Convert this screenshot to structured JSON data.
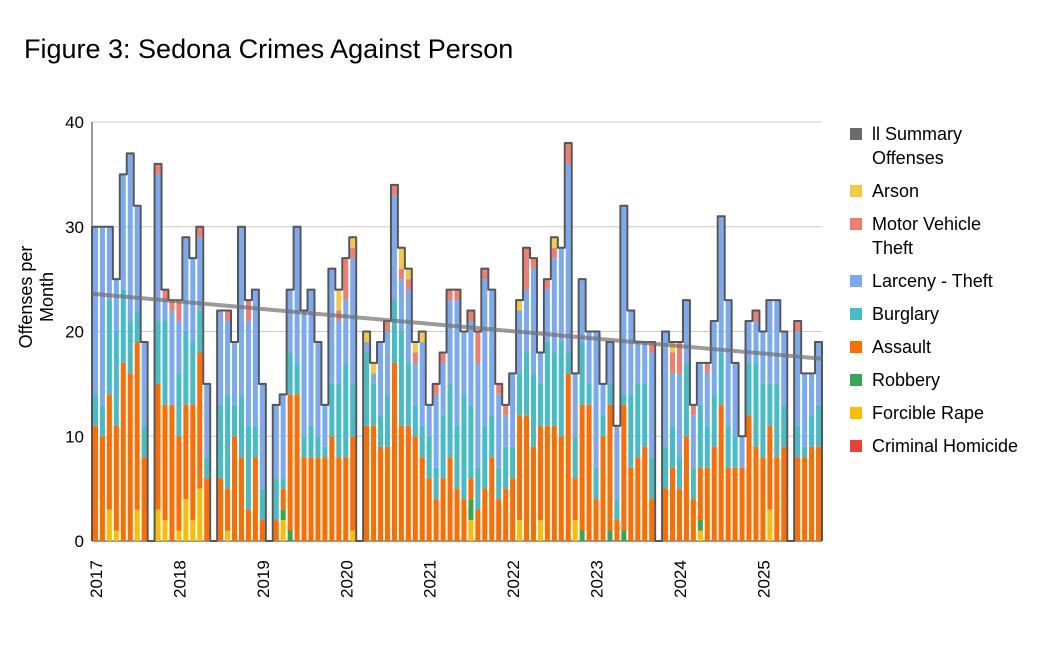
{
  "chart_data": {
    "type": "bar",
    "title": "Figure 3: Sedona Crimes Against Person",
    "ylabel": "Offenses per Month",
    "xlabel": "",
    "ylim": [
      0,
      40
    ],
    "yticks": [
      0,
      10,
      20,
      30,
      40
    ],
    "year_labels": [
      "2017",
      "2018",
      "2019",
      "2020",
      "2021",
      "2022",
      "2023",
      "2024",
      "2025"
    ],
    "months_per_year": 12,
    "legend": [
      {
        "name": "ll Summary Offenses",
        "lines": [
          "ll Summary",
          "Offenses"
        ],
        "color": "#6b6b6b"
      },
      {
        "name": "Arson",
        "lines": [
          "Arson"
        ],
        "color": "#f6c945"
      },
      {
        "name": "Motor Vehicle Theft",
        "lines": [
          "Motor Vehicle",
          "Theft"
        ],
        "color": "#f07e6e"
      },
      {
        "name": "Larceny - Theft",
        "lines": [
          "Larceny - Theft"
        ],
        "color": "#7baaf0"
      },
      {
        "name": "Burglary",
        "lines": [
          "Burglary"
        ],
        "color": "#46bdc6"
      },
      {
        "name": "Assault",
        "lines": [
          "Assault"
        ],
        "color": "#ff6d01"
      },
      {
        "name": "Robbery",
        "lines": [
          "Robbery"
        ],
        "color": "#34a853"
      },
      {
        "name": "Forcible Rape",
        "lines": [
          "Forcible Rape"
        ],
        "color": "#fbbc04"
      },
      {
        "name": "Criminal Homicide",
        "lines": [
          "Criminal Homicide"
        ],
        "color": "#ea4335"
      }
    ],
    "stack_order": [
      "Criminal Homicide",
      "Forcible Rape",
      "Robbery",
      "Assault",
      "Burglary",
      "Larceny - Theft",
      "Motor Vehicle Theft",
      "Arson"
    ],
    "trendline": {
      "start": 23.6,
      "end": 17.4
    },
    "months": [
      [
        0,
        0,
        0,
        11,
        3,
        16,
        0,
        0
      ],
      [
        0,
        0,
        0,
        10,
        3,
        17,
        0,
        0
      ],
      [
        0,
        3,
        0,
        11,
        9,
        7,
        0,
        0
      ],
      [
        0,
        1,
        0,
        10,
        9,
        5,
        0,
        0
      ],
      [
        0,
        0,
        0,
        17,
        7,
        11,
        0,
        0
      ],
      [
        0,
        0,
        0,
        16,
        5,
        16,
        0,
        0
      ],
      [
        0,
        3,
        0,
        16,
        3,
        10,
        0,
        0
      ],
      [
        0,
        0,
        0,
        8,
        3,
        8,
        0,
        0
      ],
      [
        0,
        0,
        0,
        0,
        0,
        0,
        0,
        0
      ],
      [
        0,
        3,
        0,
        12,
        6,
        14,
        1,
        0
      ],
      [
        0,
        2,
        0,
        11,
        8,
        2,
        1,
        0
      ],
      [
        0,
        0,
        0,
        13,
        0,
        9,
        1,
        0
      ],
      [
        0,
        1,
        0,
        9,
        6,
        5,
        2,
        0
      ],
      [
        0,
        4,
        0,
        9,
        7,
        9,
        0,
        0
      ],
      [
        0,
        2,
        0,
        11,
        6,
        8,
        0,
        0
      ],
      [
        0,
        5,
        0,
        13,
        4,
        7,
        1,
        0
      ],
      [
        0,
        0,
        0,
        6,
        2,
        7,
        0,
        0
      ],
      [
        0,
        0,
        0,
        0,
        0,
        0,
        0,
        0
      ],
      [
        0,
        0,
        0,
        6,
        7,
        9,
        0,
        0
      ],
      [
        0,
        1,
        0,
        4,
        9,
        7,
        1,
        0
      ],
      [
        0,
        0,
        0,
        10,
        3,
        6,
        0,
        0
      ],
      [
        0,
        0,
        0,
        8,
        6,
        16,
        0,
        0
      ],
      [
        0,
        0,
        0,
        3,
        8,
        10,
        2,
        0
      ],
      [
        0,
        0,
        0,
        8,
        3,
        13,
        0,
        0
      ],
      [
        0,
        0,
        0,
        2,
        3,
        10,
        0,
        0
      ],
      [
        0,
        0,
        0,
        0,
        0,
        0,
        0,
        0
      ],
      [
        0,
        0,
        0,
        2,
        4,
        7,
        0,
        0
      ],
      [
        0,
        2,
        1,
        2,
        1,
        8,
        0,
        0
      ],
      [
        0,
        0,
        1,
        13,
        4,
        6,
        0,
        0
      ],
      [
        0,
        0,
        0,
        14,
        3,
        13,
        0,
        0
      ],
      [
        0,
        0,
        0,
        8,
        2,
        12,
        0,
        0
      ],
      [
        0,
        0,
        0,
        8,
        3,
        13,
        0,
        0
      ],
      [
        0,
        0,
        0,
        8,
        2,
        9,
        0,
        0
      ],
      [
        0,
        0,
        0,
        8,
        1,
        4,
        0,
        0
      ],
      [
        0,
        0,
        0,
        10,
        5,
        11,
        0,
        0
      ],
      [
        0,
        0,
        0,
        8,
        7,
        6,
        1,
        2
      ],
      [
        0,
        0,
        0,
        8,
        9,
        6,
        4,
        0
      ],
      [
        0,
        1,
        0,
        9,
        5,
        12,
        1,
        1
      ],
      [
        0,
        0,
        0,
        0,
        0,
        0,
        0,
        0
      ],
      [
        0,
        0,
        0,
        11,
        7,
        1,
        0,
        1
      ],
      [
        0,
        0,
        0,
        11,
        4,
        1,
        0,
        1
      ],
      [
        0,
        0,
        0,
        9,
        3,
        7,
        0,
        0
      ],
      [
        0,
        0,
        0,
        9,
        5,
        6,
        1,
        0
      ],
      [
        0,
        0,
        0,
        17,
        6,
        10,
        1,
        0
      ],
      [
        0,
        0,
        0,
        11,
        9,
        5,
        1,
        2
      ],
      [
        0,
        0,
        0,
        11,
        6,
        7,
        1,
        1
      ],
      [
        0,
        0,
        0,
        10,
        3,
        4,
        1,
        1
      ],
      [
        0,
        0,
        0,
        8,
        3,
        8,
        0,
        1
      ],
      [
        0,
        0,
        0,
        6,
        4,
        3,
        0,
        0
      ],
      [
        0,
        0,
        0,
        4,
        3,
        7,
        1,
        0
      ],
      [
        0,
        0,
        0,
        6,
        6,
        5,
        1,
        0
      ],
      [
        0,
        0,
        0,
        8,
        7,
        8,
        1,
        0
      ],
      [
        0,
        0,
        0,
        5,
        6,
        12,
        1,
        0
      ],
      [
        0,
        0,
        0,
        4,
        10,
        6,
        0,
        0
      ],
      [
        0,
        2,
        2,
        2,
        7,
        8,
        1,
        0
      ],
      [
        0,
        0,
        0,
        3,
        4,
        10,
        3,
        0
      ],
      [
        0,
        0,
        0,
        5,
        6,
        14,
        1,
        0
      ],
      [
        0,
        0,
        0,
        8,
        4,
        12,
        0,
        0
      ],
      [
        0,
        0,
        0,
        4,
        3,
        7,
        1,
        0
      ],
      [
        0,
        0,
        0,
        5,
        4,
        3,
        1,
        0
      ],
      [
        0,
        0,
        0,
        6,
        3,
        7,
        0,
        0
      ],
      [
        0,
        2,
        0,
        10,
        4,
        6,
        0,
        1
      ],
      [
        0,
        0,
        0,
        12,
        6,
        6,
        4,
        0
      ],
      [
        0,
        0,
        0,
        9,
        7,
        10,
        1,
        0
      ],
      [
        0,
        2,
        0,
        9,
        4,
        3,
        0,
        0
      ],
      [
        0,
        0,
        0,
        11,
        8,
        5,
        1,
        0
      ],
      [
        0,
        0,
        0,
        11,
        7,
        9,
        1,
        1
      ],
      [
        0,
        0,
        0,
        10,
        9,
        9,
        0,
        0
      ],
      [
        0,
        0,
        0,
        16,
        2,
        18,
        2,
        0
      ],
      [
        0,
        2,
        0,
        4,
        4,
        6,
        0,
        0
      ],
      [
        0,
        0,
        1,
        12,
        6,
        6,
        0,
        0
      ],
      [
        0,
        0,
        0,
        13,
        2,
        5,
        0,
        0
      ],
      [
        0,
        0,
        0,
        4,
        3,
        13,
        0,
        0
      ],
      [
        0,
        0,
        0,
        10,
        2,
        3,
        0,
        0
      ],
      [
        0,
        0,
        1,
        12,
        2,
        4,
        0,
        0
      ],
      [
        0,
        0,
        0,
        2,
        2,
        7,
        0,
        0
      ],
      [
        0,
        0,
        1,
        12,
        1,
        18,
        0,
        0
      ],
      [
        0,
        0,
        0,
        7,
        7,
        8,
        0,
        0
      ],
      [
        0,
        0,
        0,
        8,
        7,
        4,
        0,
        0
      ],
      [
        0,
        0,
        0,
        9,
        6,
        4,
        0,
        0
      ],
      [
        0,
        0,
        0,
        4,
        4,
        10,
        1,
        0
      ],
      [
        0,
        0,
        0,
        0,
        0,
        0,
        0,
        0
      ],
      [
        0,
        0,
        0,
        5,
        4,
        11,
        0,
        0
      ],
      [
        0,
        0,
        0,
        7,
        4,
        5,
        2,
        1
      ],
      [
        0,
        0,
        0,
        5,
        3,
        8,
        3,
        0
      ],
      [
        0,
        0,
        0,
        10,
        7,
        6,
        0,
        0
      ],
      [
        0,
        0,
        0,
        4,
        3,
        5,
        1,
        0
      ],
      [
        0,
        1,
        1,
        5,
        6,
        4,
        0,
        0
      ],
      [
        0,
        0,
        0,
        7,
        4,
        5,
        1,
        0
      ],
      [
        0,
        0,
        0,
        9,
        5,
        7,
        0,
        0
      ],
      [
        0,
        0,
        0,
        13,
        5,
        13,
        0,
        0
      ],
      [
        0,
        0,
        0,
        7,
        4,
        12,
        0,
        0
      ],
      [
        0,
        0,
        0,
        7,
        3,
        7,
        0,
        0
      ],
      [
        0,
        0,
        0,
        7,
        0,
        3,
        0,
        0
      ],
      [
        0,
        0,
        0,
        12,
        5,
        4,
        0,
        0
      ],
      [
        0,
        0,
        0,
        9,
        8,
        4,
        1,
        0
      ],
      [
        0,
        0,
        0,
        8,
        7,
        5,
        0,
        0
      ],
      [
        0,
        3,
        0,
        8,
        4,
        8,
        0,
        0
      ],
      [
        0,
        0,
        0,
        8,
        7,
        8,
        0,
        0
      ],
      [
        0,
        0,
        0,
        9,
        4,
        7,
        0,
        0
      ],
      [
        0,
        0,
        0,
        0,
        0,
        0,
        0,
        0
      ],
      [
        0,
        0,
        0,
        8,
        3,
        9,
        1,
        0
      ],
      [
        0,
        0,
        0,
        8,
        1,
        7,
        0,
        0
      ],
      [
        0,
        0,
        0,
        9,
        3,
        4,
        0,
        0
      ],
      [
        0,
        0,
        0,
        9,
        4,
        6,
        0,
        0
      ]
    ]
  }
}
